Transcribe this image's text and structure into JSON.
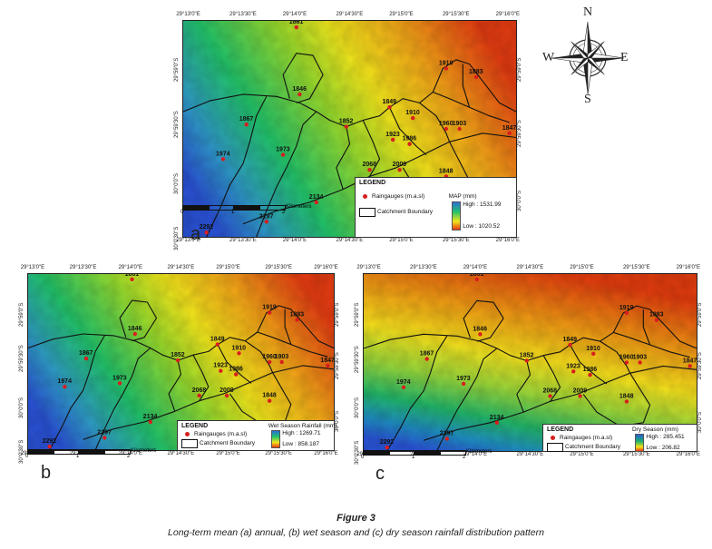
{
  "figure": {
    "title": "Figure 3",
    "caption": "Long-term mean (a) annual, (b) wet season and (c) dry season rainfall distribution pattern"
  },
  "compass": {
    "n": "N",
    "e": "E",
    "s": "S",
    "w": "W"
  },
  "legend_common": {
    "title": "LEGEND",
    "raingauges": "Raingauges (m.a.sl)",
    "catchment": "Catchment Boundary",
    "scale_unit": "Kilometers",
    "scale_labels": [
      "0",
      "1",
      "2"
    ]
  },
  "ticks": {
    "a": {
      "top": [
        "29°13'0\"E",
        "29°13'30\"E",
        "29°14'0\"E",
        "29°14'30\"E",
        "29°15'0\"E",
        "29°15'30\"E",
        "29°16'0\"E"
      ],
      "bottom": [
        "29°13'0\"E",
        "29°13'30\"E",
        "29°14'0\"E",
        "29°14'30\"E",
        "29°15'0\"E",
        "29°15'30\"E",
        "29°16'0\"E"
      ],
      "left": [
        "29°59'0\"S",
        "29°59'30\"S",
        "30°0'0\"S",
        "30°0'30\"S"
      ],
      "right": [
        "29°59'0\"S",
        "29°59'30\"S",
        "30°0'0\"S"
      ]
    },
    "b": {
      "top": [
        "29°13'0\"E",
        "29°13'30\"E",
        "29°14'0\"E",
        "29°14'30\"E",
        "29°15'0\"E",
        "29°15'30\"E",
        "29°16'0\"E"
      ],
      "bottom": [
        "29°13'0\"E",
        "29°13'30\"E",
        "29°14'0\"E",
        "29°14'30\"E",
        "29°15'0\"E",
        "29°15'30\"E",
        "29°16'0\"E"
      ],
      "left": [
        "29°59'0\"S",
        "29°59'30\"S",
        "30°0'0\"S",
        "30°0'30\"S"
      ],
      "right": [
        "29°59'0\"S",
        "29°59'30\"S",
        "30°0'0\"S"
      ]
    },
    "c": {
      "top": [
        "29°13'0\"E",
        "29°13'30\"E",
        "29°14'0\"E",
        "29°14'30\"E",
        "29°15'0\"E",
        "29°15'30\"E",
        "29°16'0\"E"
      ],
      "bottom": [
        "29°13'0\"E",
        "29°13'30\"E",
        "29°14'0\"E",
        "29°14'30\"E",
        "29°15'0\"E",
        "29°15'30\"E",
        "29°16'0\"E"
      ],
      "left": [
        "29°59'0\"S",
        "29°59'30\"S",
        "30°0'0\"S",
        "30°0'30\"S"
      ],
      "right": [
        "29°59'0\"S",
        "29°59'30\"S",
        "30°0'0\"S"
      ]
    }
  },
  "panels": [
    {
      "id": "a",
      "letter": "a",
      "ramp_title": "MAP (mm)",
      "high": "High : 1531.99",
      "low": "Low : 1020.52"
    },
    {
      "id": "b",
      "letter": "b",
      "ramp_title": "Wet Season Rainfall (mm)",
      "high": "High : 1269.71",
      "low": "Low : 858.187"
    },
    {
      "id": "c",
      "letter": "c",
      "ramp_title": "Dry Season (mm)",
      "high": "High : 285.451",
      "low": "Low : 206.82"
    }
  ],
  "gauges": [
    {
      "label": "1861",
      "u": 0.34,
      "v": 0.03
    },
    {
      "label": "1919",
      "u": 0.79,
      "v": 0.22
    },
    {
      "label": "1883",
      "u": 0.88,
      "v": 0.26
    },
    {
      "label": "1846",
      "u": 0.35,
      "v": 0.34
    },
    {
      "label": "1849",
      "u": 0.62,
      "v": 0.4
    },
    {
      "label": "1910",
      "u": 0.69,
      "v": 0.45
    },
    {
      "label": "1852",
      "u": 0.49,
      "v": 0.49
    },
    {
      "label": "1867",
      "u": 0.19,
      "v": 0.48
    },
    {
      "label": "1960",
      "u": 0.79,
      "v": 0.5
    },
    {
      "label": "1903",
      "u": 0.83,
      "v": 0.5
    },
    {
      "label": "1847",
      "u": 0.98,
      "v": 0.52
    },
    {
      "label": "1923",
      "u": 0.63,
      "v": 0.55
    },
    {
      "label": "1986",
      "u": 0.68,
      "v": 0.57
    },
    {
      "label": "1974",
      "u": 0.12,
      "v": 0.64
    },
    {
      "label": "1973",
      "u": 0.3,
      "v": 0.62
    },
    {
      "label": "2068",
      "u": 0.56,
      "v": 0.69
    },
    {
      "label": "2009",
      "u": 0.65,
      "v": 0.69
    },
    {
      "label": "1848",
      "u": 0.79,
      "v": 0.72
    },
    {
      "label": "2134",
      "u": 0.4,
      "v": 0.84
    },
    {
      "label": "2292",
      "u": 0.07,
      "v": 0.98
    },
    {
      "label": "2197",
      "u": 0.25,
      "v": 0.93
    }
  ]
}
